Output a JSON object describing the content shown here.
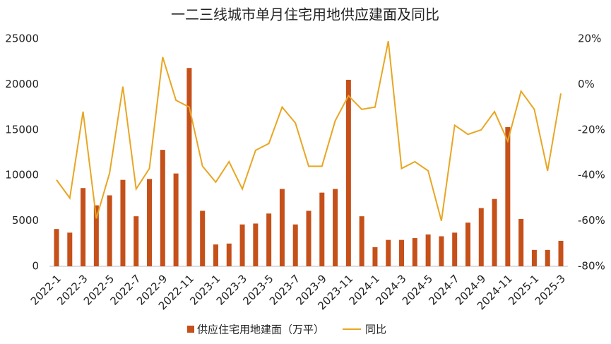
{
  "chart_data": {
    "type": "bar_line",
    "title": "一二三线城市单月住宅用地供应建面及同比",
    "categories": [
      "2022-1",
      null,
      "2022-3",
      null,
      "2022-5",
      null,
      "2022-7",
      null,
      "2022-9",
      null,
      "2022-11",
      null,
      "2023-1",
      null,
      "2023-3",
      null,
      "2023-5",
      null,
      "2023-7",
      null,
      "2023-9",
      null,
      "2023-11",
      null,
      "2024-1",
      null,
      "2024-3",
      null,
      "2024-5",
      null,
      "2024-7",
      null,
      "2024-9",
      null,
      "2024-11",
      null,
      "2025-1",
      null,
      "2025-3"
    ],
    "series": [
      {
        "name": "供应住宅用地建面（万平）",
        "type": "bar",
        "color": "#c5501a",
        "values": [
          4100,
          3700,
          8600,
          6700,
          7800,
          9500,
          5500,
          9600,
          12800,
          10200,
          21800,
          6100,
          2400,
          2500,
          4600,
          4700,
          5800,
          8500,
          4600,
          6100,
          8100,
          8500,
          20500,
          5500,
          2100,
          2900,
          2900,
          3100,
          3500,
          3300,
          3700,
          4800,
          6400,
          7400,
          15300,
          5200,
          1800,
          1800,
          2800
        ]
      },
      {
        "name": "同比",
        "type": "line",
        "axis": "y2",
        "color": "#e8a623",
        "values": [
          -42,
          -50,
          -12,
          -59,
          -39,
          -1,
          -46,
          -37,
          12,
          -7,
          -10,
          -36,
          -43,
          -34,
          -46,
          -29,
          -26,
          -10,
          -17,
          -36,
          -36,
          -16,
          -5,
          -11,
          -10,
          19,
          -37,
          -34,
          -38,
          -60,
          -18,
          -22,
          -20,
          -12,
          -25,
          -3,
          -11,
          -38,
          -4
        ]
      }
    ],
    "ylim": [
      0,
      25000
    ],
    "yticks": [
      0,
      5000,
      10000,
      15000,
      20000,
      25000
    ],
    "y2lim": [
      -80,
      20
    ],
    "y2ticks": [
      {
        "value": -80,
        "label": "-80%"
      },
      {
        "value": -60,
        "label": "-60%"
      },
      {
        "value": -40,
        "label": "-40%"
      },
      {
        "value": -20,
        "label": "-20%"
      },
      {
        "value": 0,
        "label": "0%"
      },
      {
        "value": 20,
        "label": "20%"
      }
    ],
    "grid": false,
    "legend": "bottom"
  }
}
